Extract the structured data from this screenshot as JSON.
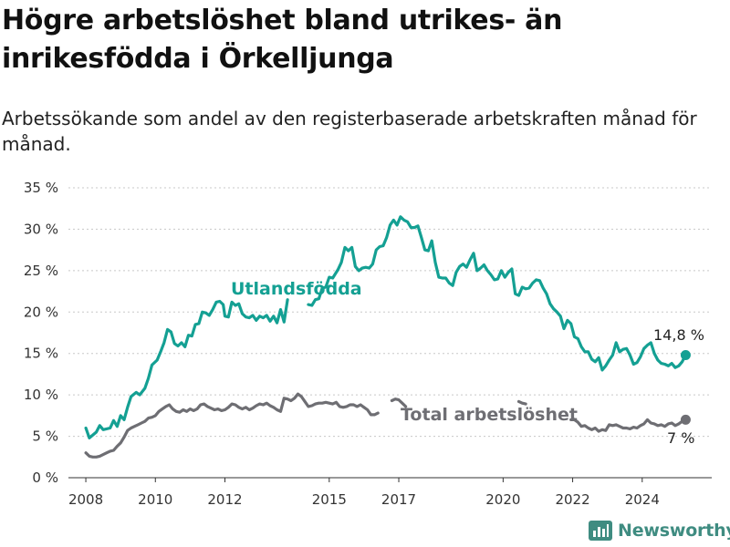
{
  "title": "Högre arbetslöshet bland utrikes- än inrikesfödda i Örkelljunga",
  "subtitle": "Arbetssökande som andel av den registerbaserade arbetskraften månad för månad.",
  "brand": {
    "name": "Newsworthy",
    "icon": "newsworthy-bar-chart-logo",
    "color": "#3f8c81"
  },
  "chart_data": {
    "type": "line",
    "x_unit": "year",
    "xlim": [
      2007.5,
      2026.0
    ],
    "ylim": [
      0,
      35
    ],
    "y_ticks": [
      0,
      5,
      10,
      15,
      20,
      25,
      30,
      35
    ],
    "y_tick_labels": [
      "0 %",
      "5 %",
      "10 %",
      "15 %",
      "20 %",
      "25 %",
      "30 %",
      "35 %"
    ],
    "x_ticks": [
      2008,
      2010,
      2012,
      2015,
      2017,
      2020,
      2022,
      2024
    ],
    "x_tick_labels": [
      "2008",
      "2010",
      "2012",
      "2015",
      "2017",
      "2020",
      "2022",
      "2024"
    ],
    "grid": "horizontal-dashed",
    "series": [
      {
        "name": "Utlandsfödda",
        "color": "#14a093",
        "end_label": "14,8 %",
        "points": [
          [
            2008.0,
            6.0
          ],
          [
            2008.1,
            4.8
          ],
          [
            2008.3,
            5.5
          ],
          [
            2008.4,
            6.3
          ],
          [
            2008.5,
            5.8
          ],
          [
            2008.7,
            6.0
          ],
          [
            2008.8,
            6.9
          ],
          [
            2008.9,
            6.2
          ],
          [
            2009.0,
            7.5
          ],
          [
            2009.1,
            7.0
          ],
          [
            2009.2,
            8.5
          ],
          [
            2009.3,
            9.8
          ],
          [
            2009.45,
            10.3
          ],
          [
            2009.55,
            10.0
          ],
          [
            2009.7,
            10.8
          ],
          [
            2009.8,
            12.0
          ],
          [
            2009.9,
            13.6
          ],
          [
            2010.05,
            14.2
          ],
          [
            2010.15,
            15.2
          ],
          [
            2010.25,
            16.3
          ],
          [
            2010.35,
            17.9
          ],
          [
            2010.45,
            17.6
          ],
          [
            2010.55,
            16.2
          ],
          [
            2010.65,
            15.9
          ],
          [
            2010.75,
            16.3
          ],
          [
            2010.85,
            15.8
          ],
          [
            2010.95,
            17.2
          ],
          [
            2011.05,
            17.1
          ],
          [
            2011.15,
            18.5
          ],
          [
            2011.25,
            18.6
          ],
          [
            2011.35,
            20.0
          ],
          [
            2011.45,
            19.9
          ],
          [
            2011.55,
            19.6
          ],
          [
            2011.65,
            20.3
          ],
          [
            2011.75,
            21.2
          ],
          [
            2011.85,
            21.3
          ],
          [
            2011.95,
            20.9
          ],
          [
            2012.0,
            19.5
          ],
          [
            2012.1,
            19.4
          ],
          [
            2012.2,
            21.2
          ],
          [
            2012.3,
            20.8
          ],
          [
            2012.4,
            21.0
          ],
          [
            2012.5,
            19.8
          ],
          [
            2012.6,
            19.4
          ],
          [
            2012.7,
            19.3
          ],
          [
            2012.8,
            19.6
          ],
          [
            2012.9,
            19.0
          ],
          [
            2013.0,
            19.5
          ],
          [
            2013.1,
            19.3
          ],
          [
            2013.2,
            19.6
          ],
          [
            2013.3,
            18.9
          ],
          [
            2013.4,
            19.5
          ],
          [
            2013.5,
            18.7
          ],
          [
            2013.6,
            20.3
          ],
          [
            2013.7,
            18.8
          ],
          [
            2013.8,
            21.5
          ]
        ],
        "points_after_label": [
          [
            2014.4,
            20.9
          ],
          [
            2014.5,
            20.8
          ],
          [
            2014.6,
            21.5
          ],
          [
            2014.7,
            21.6
          ],
          [
            2014.8,
            22.9
          ],
          [
            2014.9,
            23.0
          ],
          [
            2015.0,
            24.2
          ],
          [
            2015.1,
            24.1
          ],
          [
            2015.25,
            25.1
          ],
          [
            2015.35,
            26.0
          ],
          [
            2015.45,
            27.8
          ],
          [
            2015.55,
            27.4
          ],
          [
            2015.65,
            27.8
          ],
          [
            2015.75,
            25.5
          ],
          [
            2015.85,
            25.0
          ],
          [
            2015.95,
            25.3
          ],
          [
            2016.05,
            25.4
          ],
          [
            2016.15,
            25.3
          ],
          [
            2016.25,
            25.8
          ],
          [
            2016.35,
            27.5
          ],
          [
            2016.45,
            27.9
          ],
          [
            2016.55,
            28.0
          ],
          [
            2016.65,
            29.0
          ],
          [
            2016.75,
            30.5
          ],
          [
            2016.85,
            31.1
          ],
          [
            2016.95,
            30.5
          ],
          [
            2017.05,
            31.5
          ],
          [
            2017.15,
            31.1
          ],
          [
            2017.25,
            30.9
          ],
          [
            2017.35,
            30.2
          ],
          [
            2017.45,
            30.2
          ],
          [
            2017.55,
            30.4
          ],
          [
            2017.65,
            29.0
          ],
          [
            2017.75,
            27.5
          ],
          [
            2017.85,
            27.4
          ],
          [
            2017.95,
            28.6
          ],
          [
            2018.05,
            26.0
          ],
          [
            2018.15,
            24.2
          ],
          [
            2018.25,
            24.1
          ],
          [
            2018.35,
            24.1
          ],
          [
            2018.45,
            23.5
          ],
          [
            2018.55,
            23.2
          ],
          [
            2018.65,
            24.8
          ],
          [
            2018.75,
            25.5
          ],
          [
            2018.85,
            25.8
          ],
          [
            2018.95,
            25.4
          ],
          [
            2019.05,
            26.3
          ],
          [
            2019.15,
            27.1
          ],
          [
            2019.25,
            25.0
          ],
          [
            2019.35,
            25.3
          ],
          [
            2019.45,
            25.7
          ],
          [
            2019.55,
            25.0
          ],
          [
            2019.65,
            24.5
          ],
          [
            2019.75,
            23.9
          ],
          [
            2019.85,
            24.0
          ],
          [
            2019.95,
            25.0
          ],
          [
            2020.05,
            24.2
          ],
          [
            2020.15,
            24.8
          ],
          [
            2020.25,
            25.2
          ],
          [
            2020.35,
            22.2
          ],
          [
            2020.45,
            22.0
          ],
          [
            2020.55,
            23.0
          ],
          [
            2020.65,
            22.8
          ],
          [
            2020.75,
            22.9
          ],
          [
            2020.85,
            23.5
          ],
          [
            2020.95,
            23.9
          ],
          [
            2021.05,
            23.8
          ],
          [
            2021.15,
            22.9
          ],
          [
            2021.25,
            22.2
          ],
          [
            2021.35,
            21.0
          ],
          [
            2021.45,
            20.4
          ],
          [
            2021.55,
            20.0
          ],
          [
            2021.65,
            19.5
          ],
          [
            2021.75,
            18.0
          ],
          [
            2021.85,
            19.0
          ],
          [
            2021.95,
            18.6
          ],
          [
            2022.05,
            17.0
          ],
          [
            2022.15,
            16.8
          ],
          [
            2022.25,
            15.8
          ],
          [
            2022.35,
            15.2
          ],
          [
            2022.45,
            15.2
          ],
          [
            2022.55,
            14.3
          ],
          [
            2022.65,
            14.0
          ],
          [
            2022.75,
            14.5
          ],
          [
            2022.85,
            13.0
          ],
          [
            2022.95,
            13.5
          ],
          [
            2023.05,
            14.2
          ],
          [
            2023.15,
            14.8
          ],
          [
            2023.25,
            16.3
          ],
          [
            2023.35,
            15.2
          ],
          [
            2023.45,
            15.5
          ],
          [
            2023.55,
            15.6
          ],
          [
            2023.65,
            14.8
          ],
          [
            2023.75,
            13.7
          ],
          [
            2023.85,
            13.9
          ],
          [
            2023.95,
            14.6
          ],
          [
            2024.05,
            15.6
          ],
          [
            2024.15,
            16.0
          ],
          [
            2024.25,
            16.3
          ],
          [
            2024.35,
            15.0
          ],
          [
            2024.45,
            14.2
          ],
          [
            2024.55,
            13.8
          ],
          [
            2024.65,
            13.7
          ],
          [
            2024.75,
            13.5
          ],
          [
            2024.85,
            13.8
          ],
          [
            2024.95,
            13.3
          ],
          [
            2025.05,
            13.5
          ],
          [
            2025.15,
            14.0
          ],
          [
            2025.25,
            14.8
          ]
        ]
      },
      {
        "name": "Total arbetslöshet",
        "color": "#6e6e73",
        "end_label": "7 %",
        "points": [
          [
            2008.0,
            3.0
          ],
          [
            2008.1,
            2.6
          ],
          [
            2008.2,
            2.5
          ],
          [
            2008.3,
            2.5
          ],
          [
            2008.4,
            2.6
          ],
          [
            2008.5,
            2.8
          ],
          [
            2008.6,
            3.0
          ],
          [
            2008.7,
            3.2
          ],
          [
            2008.8,
            3.3
          ],
          [
            2008.9,
            3.8
          ],
          [
            2009.0,
            4.2
          ],
          [
            2009.1,
            4.9
          ],
          [
            2009.2,
            5.7
          ],
          [
            2009.3,
            6.0
          ],
          [
            2009.4,
            6.2
          ],
          [
            2009.5,
            6.4
          ],
          [
            2009.6,
            6.6
          ],
          [
            2009.7,
            6.8
          ],
          [
            2009.8,
            7.2
          ],
          [
            2009.9,
            7.3
          ],
          [
            2010.0,
            7.5
          ],
          [
            2010.1,
            8.0
          ],
          [
            2010.2,
            8.3
          ],
          [
            2010.3,
            8.6
          ],
          [
            2010.4,
            8.8
          ],
          [
            2010.5,
            8.3
          ],
          [
            2010.6,
            8.0
          ],
          [
            2010.7,
            7.9
          ],
          [
            2010.8,
            8.2
          ],
          [
            2010.9,
            8.0
          ],
          [
            2011.0,
            8.3
          ],
          [
            2011.1,
            8.1
          ],
          [
            2011.2,
            8.3
          ],
          [
            2011.3,
            8.8
          ],
          [
            2011.4,
            8.9
          ],
          [
            2011.5,
            8.6
          ],
          [
            2011.6,
            8.4
          ],
          [
            2011.7,
            8.2
          ],
          [
            2011.8,
            8.3
          ],
          [
            2011.9,
            8.1
          ],
          [
            2012.0,
            8.2
          ],
          [
            2012.1,
            8.5
          ],
          [
            2012.2,
            8.9
          ],
          [
            2012.3,
            8.8
          ],
          [
            2012.4,
            8.5
          ],
          [
            2012.5,
            8.3
          ],
          [
            2012.6,
            8.5
          ],
          [
            2012.7,
            8.2
          ],
          [
            2012.8,
            8.4
          ],
          [
            2012.9,
            8.7
          ],
          [
            2013.0,
            8.9
          ],
          [
            2013.1,
            8.8
          ],
          [
            2013.2,
            9.0
          ],
          [
            2013.3,
            8.7
          ],
          [
            2013.4,
            8.5
          ],
          [
            2013.5,
            8.2
          ],
          [
            2013.6,
            8.0
          ],
          [
            2013.7,
            9.6
          ],
          [
            2013.8,
            9.5
          ],
          [
            2013.9,
            9.3
          ],
          [
            2014.0,
            9.6
          ],
          [
            2014.1,
            10.1
          ],
          [
            2014.2,
            9.8
          ],
          [
            2014.3,
            9.2
          ],
          [
            2014.4,
            8.6
          ],
          [
            2014.5,
            8.7
          ],
          [
            2014.6,
            8.9
          ],
          [
            2014.7,
            9.0
          ],
          [
            2014.8,
            9.0
          ],
          [
            2014.9,
            9.1
          ],
          [
            2015.0,
            9.0
          ],
          [
            2015.1,
            8.9
          ],
          [
            2015.2,
            9.1
          ],
          [
            2015.3,
            8.6
          ],
          [
            2015.4,
            8.5
          ],
          [
            2015.5,
            8.6
          ],
          [
            2015.6,
            8.8
          ],
          [
            2015.7,
            8.8
          ],
          [
            2015.8,
            8.6
          ],
          [
            2015.9,
            8.8
          ],
          [
            2016.0,
            8.5
          ],
          [
            2016.1,
            8.2
          ],
          [
            2016.2,
            7.6
          ],
          [
            2016.3,
            7.6
          ],
          [
            2016.4,
            7.8
          ]
        ],
        "points_after_label": [
          [
            2016.8,
            9.3
          ],
          [
            2016.9,
            9.5
          ],
          [
            2017.0,
            9.4
          ],
          [
            2017.1,
            9.0
          ],
          [
            2017.2,
            8.6
          ]
        ],
        "points_tail": [
          [
            2020.45,
            9.2
          ],
          [
            2020.55,
            9.0
          ],
          [
            2020.65,
            8.9
          ]
        ],
        "points_late": [
          [
            2021.95,
            7.0
          ],
          [
            2022.05,
            7.0
          ],
          [
            2022.15,
            6.7
          ],
          [
            2022.25,
            6.2
          ],
          [
            2022.35,
            6.3
          ],
          [
            2022.45,
            6.0
          ],
          [
            2022.55,
            5.8
          ],
          [
            2022.65,
            6.0
          ],
          [
            2022.75,
            5.6
          ],
          [
            2022.85,
            5.8
          ],
          [
            2022.95,
            5.7
          ],
          [
            2023.05,
            6.4
          ],
          [
            2023.15,
            6.3
          ],
          [
            2023.25,
            6.4
          ],
          [
            2023.35,
            6.2
          ],
          [
            2023.45,
            6.0
          ],
          [
            2023.55,
            6.0
          ],
          [
            2023.65,
            5.9
          ],
          [
            2023.75,
            6.1
          ],
          [
            2023.85,
            6.0
          ],
          [
            2023.95,
            6.3
          ],
          [
            2024.05,
            6.5
          ],
          [
            2024.15,
            7.0
          ],
          [
            2024.25,
            6.6
          ],
          [
            2024.35,
            6.5
          ],
          [
            2024.45,
            6.3
          ],
          [
            2024.55,
            6.4
          ],
          [
            2024.65,
            6.2
          ],
          [
            2024.75,
            6.5
          ],
          [
            2024.85,
            6.6
          ],
          [
            2024.95,
            6.3
          ],
          [
            2025.05,
            6.5
          ],
          [
            2025.15,
            6.8
          ],
          [
            2025.25,
            7.0
          ]
        ]
      }
    ]
  }
}
